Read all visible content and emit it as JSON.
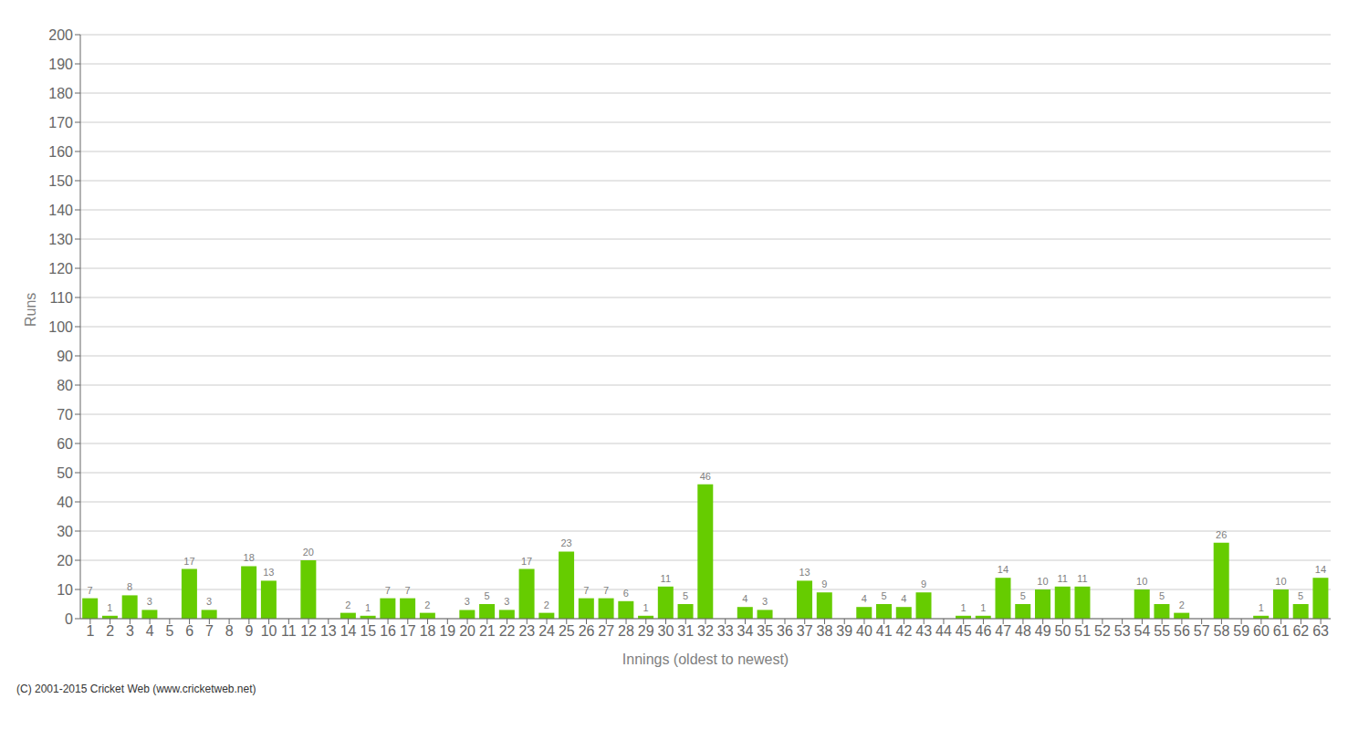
{
  "chart_data": {
    "type": "bar",
    "categories": [
      "1",
      "2",
      "3",
      "4",
      "5",
      "6",
      "7",
      "8",
      "9",
      "10",
      "11",
      "12",
      "13",
      "14",
      "15",
      "16",
      "17",
      "18",
      "19",
      "20",
      "21",
      "22",
      "23",
      "24",
      "25",
      "26",
      "27",
      "28",
      "29",
      "30",
      "31",
      "32",
      "33",
      "34",
      "35",
      "36",
      "37",
      "38",
      "39",
      "40",
      "41",
      "42",
      "43",
      "44",
      "45",
      "46",
      "47",
      "48",
      "49",
      "50",
      "51",
      "52",
      "53",
      "54",
      "55",
      "56",
      "57",
      "58",
      "59",
      "60",
      "61",
      "62",
      "63"
    ],
    "values": [
      7,
      1,
      8,
      3,
      0,
      17,
      3,
      0,
      18,
      13,
      0,
      20,
      0,
      2,
      1,
      7,
      7,
      2,
      0,
      3,
      5,
      3,
      17,
      2,
      23,
      7,
      7,
      6,
      1,
      11,
      5,
      46,
      0,
      4,
      3,
      0,
      13,
      9,
      0,
      4,
      5,
      4,
      9,
      0,
      1,
      1,
      14,
      5,
      10,
      11,
      11,
      0,
      0,
      10,
      5,
      2,
      0,
      26,
      0,
      1,
      10,
      5,
      14
    ],
    "color": "#66cc00",
    "xlabel": "Innings (oldest to newest)",
    "ylabel": "Runs",
    "ylim": [
      0,
      200
    ],
    "yticks": [
      0,
      10,
      20,
      30,
      40,
      50,
      60,
      70,
      80,
      90,
      100,
      110,
      120,
      130,
      140,
      150,
      160,
      170,
      180,
      190,
      200
    ],
    "grid": true,
    "data_labels": true,
    "annotations": [
      "(C) 2001-2015 Cricket Web (www.cricketweb.net)"
    ]
  }
}
